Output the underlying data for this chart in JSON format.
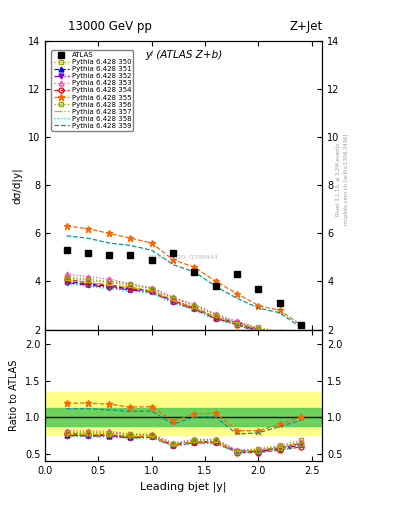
{
  "title_top": "13000 GeV pp",
  "title_right": "Z+Jet",
  "subtitle": "yʲ (ATLAS Z+b)",
  "xlabel": "Leading bjet |y|",
  "ylabel_main": "dσ/d|y|",
  "ylabel_ratio": "Ratio to ATLAS",
  "watermark": "ATLAS_2020_I1788444",
  "x_data": [
    0.2,
    0.4,
    0.6,
    0.8,
    1.0,
    1.2,
    1.4,
    1.6,
    1.8,
    2.0,
    2.2,
    2.4
  ],
  "atlas_data": [
    5.3,
    5.2,
    5.1,
    5.1,
    4.9,
    5.2,
    4.4,
    3.8,
    4.3,
    3.7,
    3.1,
    2.2
  ],
  "series": [
    {
      "label": "Pythia 6.428 350",
      "color": "#aaaa00",
      "marker": "s",
      "fillstyle": "none",
      "linestyle": "dotted",
      "data": [
        4.2,
        4.1,
        4.0,
        3.9,
        3.7,
        3.3,
        3.0,
        2.6,
        2.3,
        2.1,
        1.9,
        1.5
      ]
    },
    {
      "label": "Pythia 6.428 351",
      "color": "#0000ff",
      "marker": "^",
      "fillstyle": "full",
      "linestyle": "dashed",
      "data": [
        4.0,
        3.9,
        3.8,
        3.7,
        3.6,
        3.2,
        2.9,
        2.5,
        2.3,
        2.0,
        1.8,
        1.4
      ]
    },
    {
      "label": "Pythia 6.428 352",
      "color": "#8800bb",
      "marker": "v",
      "fillstyle": "full",
      "linestyle": "dashdot",
      "data": [
        3.95,
        3.85,
        3.75,
        3.65,
        3.55,
        3.15,
        2.85,
        2.45,
        2.25,
        1.95,
        1.75,
        1.35
      ]
    },
    {
      "label": "Pythia 6.428 353",
      "color": "#ff44aa",
      "marker": "^",
      "fillstyle": "none",
      "linestyle": "dotted",
      "data": [
        4.3,
        4.2,
        4.1,
        3.9,
        3.75,
        3.35,
        3.05,
        2.65,
        2.35,
        2.05,
        1.85,
        1.45
      ]
    },
    {
      "label": "Pythia 6.428 354",
      "color": "#ff0000",
      "marker": "o",
      "fillstyle": "none",
      "linestyle": "dashed",
      "data": [
        4.1,
        3.95,
        3.85,
        3.75,
        3.6,
        3.2,
        2.9,
        2.5,
        2.2,
        1.9,
        1.7,
        1.3
      ]
    },
    {
      "label": "Pythia 6.428 355",
      "color": "#ff6600",
      "marker": "*",
      "fillstyle": "full",
      "linestyle": "dashed",
      "data": [
        6.3,
        6.2,
        6.0,
        5.8,
        5.6,
        4.9,
        4.6,
        4.0,
        3.5,
        3.0,
        2.8,
        2.2
      ]
    },
    {
      "label": "Pythia 6.428 356",
      "color": "#88aa00",
      "marker": "s",
      "fillstyle": "none",
      "linestyle": "dotted",
      "data": [
        4.15,
        4.05,
        3.95,
        3.85,
        3.7,
        3.3,
        3.0,
        2.6,
        2.25,
        2.0,
        1.8,
        1.4
      ]
    },
    {
      "label": "Pythia 6.428 357",
      "color": "#ddaa00",
      "marker": "None",
      "fillstyle": "none",
      "linestyle": "dashdot",
      "data": [
        4.05,
        3.95,
        3.85,
        3.75,
        3.6,
        3.2,
        2.9,
        2.5,
        2.28,
        2.02,
        1.82,
        1.42
      ]
    },
    {
      "label": "Pythia 6.428 358",
      "color": "#00ddbb",
      "marker": "None",
      "fillstyle": "none",
      "linestyle": "dotted",
      "data": [
        3.9,
        3.8,
        3.7,
        3.6,
        3.5,
        3.1,
        2.8,
        2.4,
        2.2,
        1.9,
        1.7,
        1.3
      ]
    },
    {
      "label": "Pythia 6.428 359",
      "color": "#009999",
      "marker": "None",
      "fillstyle": "none",
      "linestyle": "dashed",
      "data": [
        5.9,
        5.8,
        5.6,
        5.5,
        5.3,
        4.7,
        4.4,
        3.8,
        3.3,
        2.9,
        2.7,
        2.1
      ]
    }
  ],
  "band_yellow": [
    0.75,
    1.35
  ],
  "band_green": [
    0.88,
    1.12
  ],
  "ylim_main": [
    2,
    14
  ],
  "ylim_ratio": [
    0.4,
    2.2
  ],
  "yticks_main": [
    2,
    4,
    6,
    8,
    10,
    12,
    14
  ],
  "yticks_ratio": [
    0.5,
    1.0,
    1.5,
    2.0
  ],
  "xlim": [
    0.0,
    2.6
  ]
}
